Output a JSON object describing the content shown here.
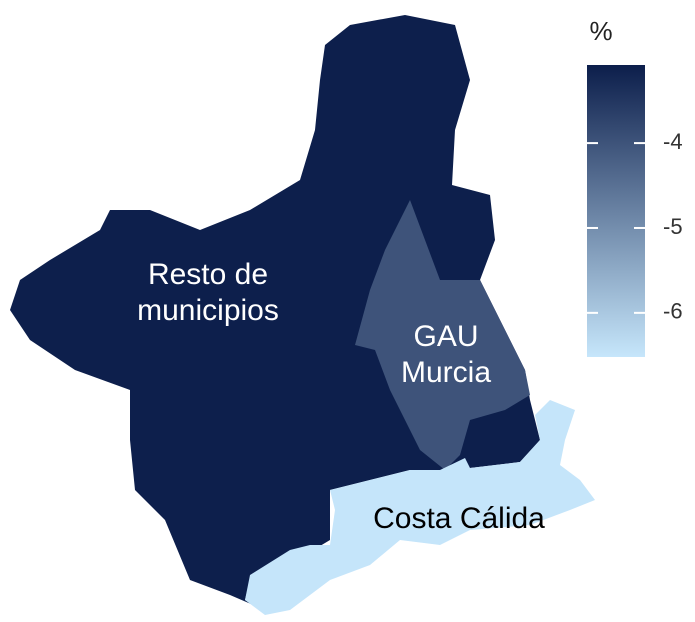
{
  "chart_data": {
    "type": "choropleth",
    "regions": [
      {
        "name": "Resto de municipios",
        "label_lines": [
          "Resto de",
          "municipios"
        ],
        "value": -3.1
      },
      {
        "name": "GAU Murcia",
        "label_lines": [
          "GAU",
          "Murcia"
        ],
        "value": -4.0
      },
      {
        "name": "Costa Cálida",
        "label_lines": [
          "Costa Cálida"
        ],
        "value": -6.5
      }
    ],
    "legend_title": "%",
    "colorbar": {
      "lim": [
        -6.52,
        -3.08
      ],
      "ticks": [
        -4,
        -5,
        -6
      ],
      "low_color": "#c6e6fb",
      "high_color": "#0c1e4b"
    }
  }
}
